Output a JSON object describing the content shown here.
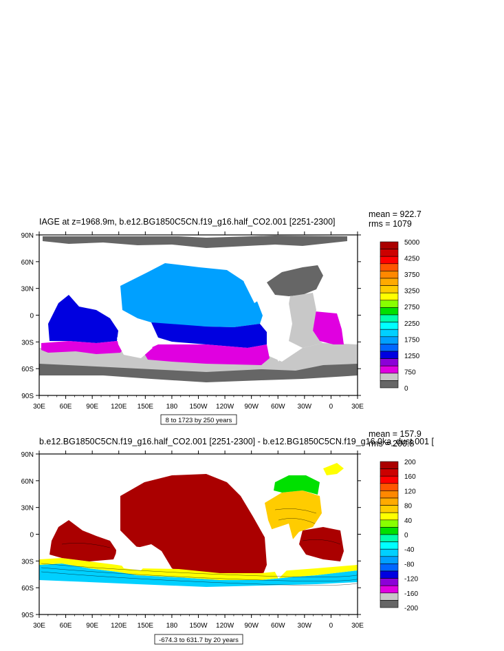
{
  "chart_data": [
    {
      "type": "heatmap",
      "title": "IAGE at z=1968.9m, b.e12.BG1850C5CN.f19_g16.half_CO2.001 [2251-2300]",
      "stats": {
        "mean": "mean = 922.7",
        "rms": "rms = 1079"
      },
      "contour_info": "8 to 1723 by 250 years",
      "x_ticks": [
        "30E",
        "60E",
        "90E",
        "120E",
        "150E",
        "180",
        "150W",
        "120W",
        "90W",
        "60W",
        "30W",
        "0",
        "30E"
      ],
      "y_ticks": [
        "90N",
        "60N",
        "30N",
        "0",
        "30S",
        "60S",
        "90S"
      ],
      "colorbar_labels": [
        "5000",
        "4250",
        "3750",
        "3250",
        "2750",
        "2250",
        "1750",
        "1250",
        "750",
        "0"
      ],
      "colors": [
        "#666666",
        "#c8c8c8",
        "#e000e0",
        "#8c00d8",
        "#0000e0",
        "#0066ff",
        "#00a0ff",
        "#00d0ff",
        "#00ffff",
        "#00ffaa",
        "#00e000",
        "#88ff00",
        "#ffff00",
        "#ffcc00",
        "#ffaa00",
        "#ff8800",
        "#ff5500",
        "#ff0000",
        "#cc0000",
        "#aa0000"
      ],
      "regions": {
        "south_pacific_band": "#e000e0",
        "pacific_mid": "#0000e0",
        "pacific_north": "#00a0ff",
        "indian": "#0000e0",
        "atlantic_south": "#e000e0",
        "southern_ocean": "#c8c8c8",
        "antarctic_margin": "#666666",
        "arctic": "#666666",
        "north_atlantic": "#666666"
      }
    },
    {
      "type": "heatmap",
      "title": "b.e12.BG1850C5CN.f19_g16.half_CO2.001 [2251-2300] - b.e12.BG1850C5CN.f19_g16.0ka_dust.001 [",
      "stats": {
        "mean": "mean = 157.9",
        "rms": "rms = 200.8"
      },
      "contour_info": "-674.3 to 631.7 by 20 years",
      "x_ticks": [
        "30E",
        "60E",
        "90E",
        "120E",
        "150E",
        "180",
        "150W",
        "120W",
        "90W",
        "60W",
        "30W",
        "0",
        "30E"
      ],
      "y_ticks": [
        "90N",
        "60N",
        "30N",
        "0",
        "30S",
        "60S",
        "90S"
      ],
      "colorbar_labels": [
        "200",
        "160",
        "120",
        "80",
        "40",
        "0",
        "-40",
        "-80",
        "-120",
        "-160",
        "-200"
      ],
      "colors": [
        "#666666",
        "#c8c8c8",
        "#e000e0",
        "#8c00d8",
        "#0000e0",
        "#0066ff",
        "#00a0ff",
        "#00d0ff",
        "#00ffff",
        "#00ffaa",
        "#00e000",
        "#88ff00",
        "#ffff00",
        "#ffcc00",
        "#ffaa00",
        "#ff8800",
        "#ff5500",
        "#ff0000",
        "#cc0000",
        "#aa0000"
      ],
      "regions": {
        "pacific": "#aa0000",
        "indian_north": "#aa0000",
        "south_atlantic": "#aa0000",
        "north_atlantic_mid": "#ffcc00",
        "north_atlantic_high": "#00e000",
        "southern_ocean_high": "#00d0ff",
        "southern_ocean_mid": "#ffff00",
        "arctic_patch": "#ffff00"
      }
    }
  ]
}
